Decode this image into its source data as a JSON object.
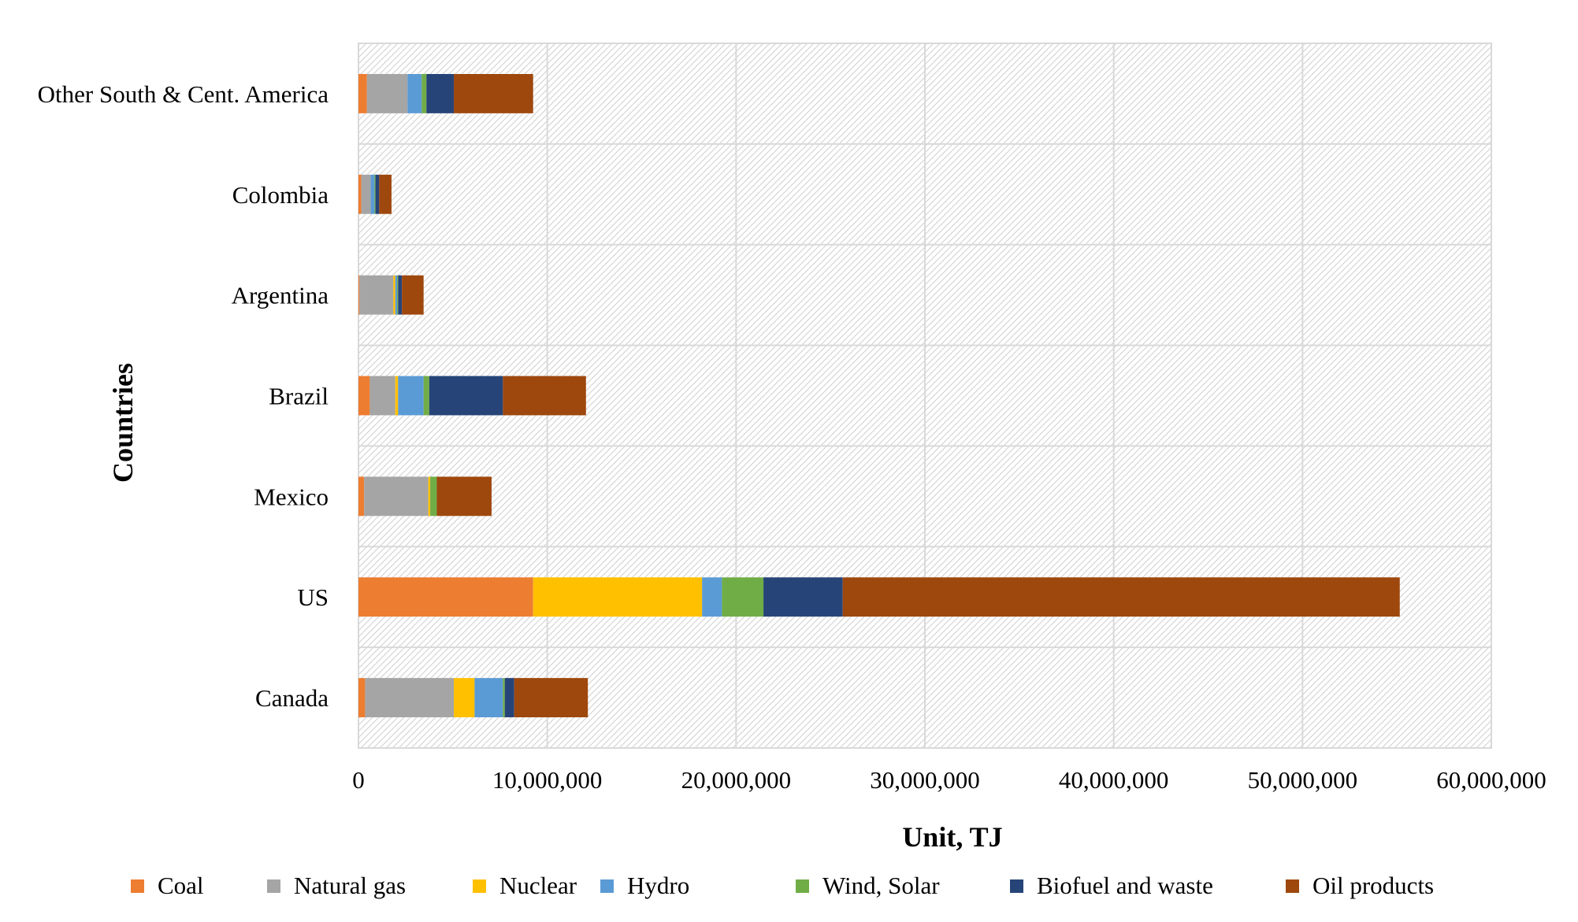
{
  "chart_data": {
    "type": "bar",
    "orientation": "horizontal",
    "stacked": true,
    "title": "",
    "xlabel": "Unit, TJ",
    "ylabel": "Countries",
    "xlim": [
      0,
      60000000
    ],
    "x_ticks": [
      0,
      10000000,
      20000000,
      30000000,
      40000000,
      50000000,
      60000000
    ],
    "x_tick_labels": [
      "0",
      "10,000,000",
      "20,000,000",
      "30,000,000",
      "40,000,000",
      "50,000,000",
      "60,000,000"
    ],
    "grid": true,
    "legend_position": "bottom",
    "categories": [
      "Other South & Cent. America",
      "Colombia",
      "Argentina",
      "Brazil",
      "Mexico",
      "US",
      "Canada"
    ],
    "series": [
      {
        "name": "Coal",
        "color": "#ED7D31",
        "values": [
          450000,
          150000,
          50000,
          600000,
          300000,
          9250000,
          350000
        ]
      },
      {
        "name": "Natural gas",
        "color": "#A5A5A5",
        "values": [
          2150000,
          500000,
          1800000,
          1350000,
          3400000,
          0,
          4700000
        ]
      },
      {
        "name": "Nuclear",
        "color": "#FFC000",
        "values": [
          0,
          0,
          100000,
          150000,
          100000,
          8950000,
          1100000
        ]
      },
      {
        "name": "Hydro",
        "color": "#5B9BD5",
        "values": [
          750000,
          200000,
          100000,
          1350000,
          0,
          1050000,
          1500000
        ]
      },
      {
        "name": "Wind, Solar",
        "color": "#70AD47",
        "values": [
          250000,
          50000,
          50000,
          300000,
          350000,
          2200000,
          100000
        ]
      },
      {
        "name": "Biofuel and waste",
        "color": "#264478",
        "values": [
          1450000,
          200000,
          200000,
          3900000,
          0,
          4200000,
          500000
        ]
      },
      {
        "name": "Oil products",
        "color": "#9E480E",
        "values": [
          4200000,
          650000,
          1150000,
          4400000,
          2900000,
          29500000,
          3900000
        ]
      }
    ]
  }
}
